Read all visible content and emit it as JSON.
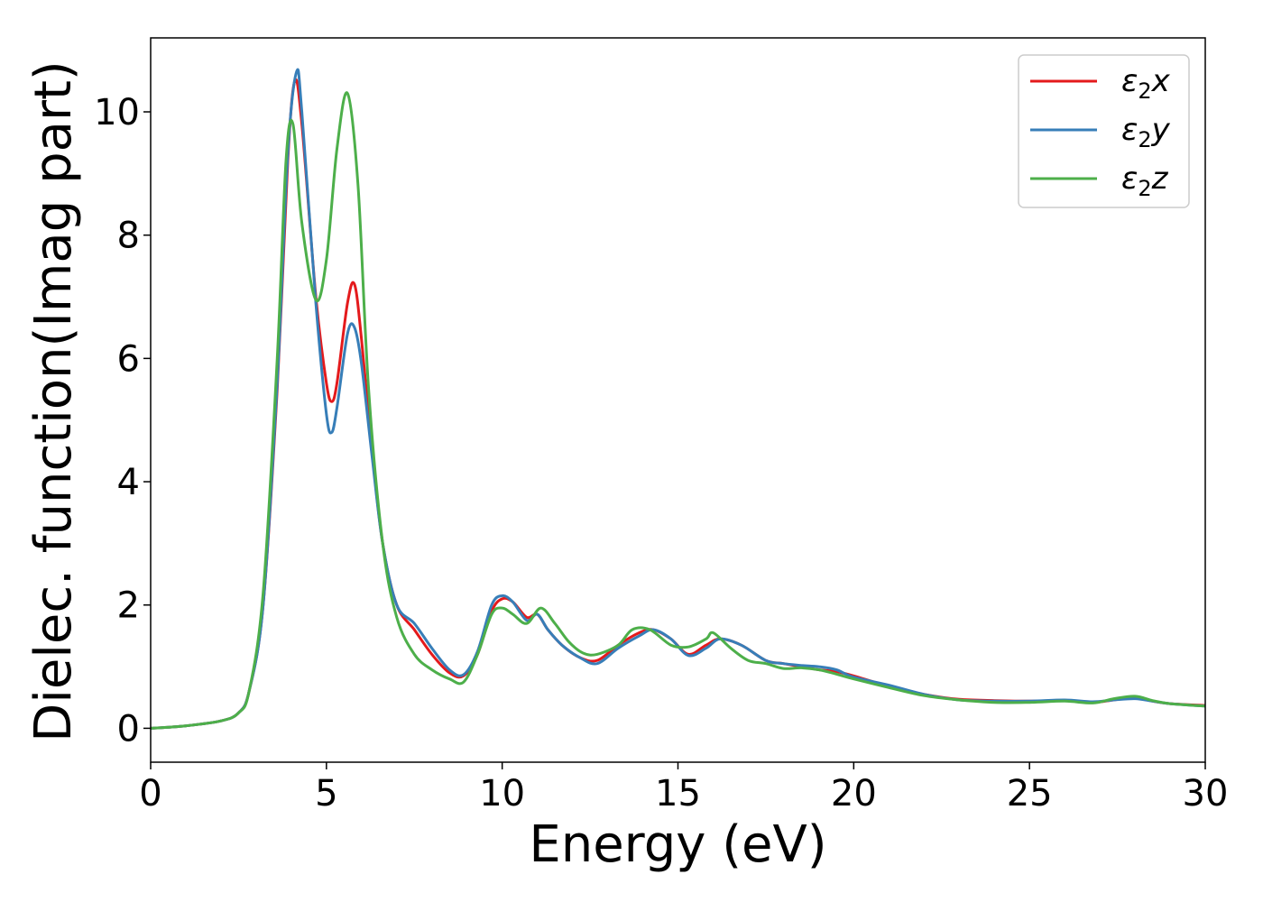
{
  "chart_data": {
    "type": "line",
    "title": "",
    "xlabel": "Energy (eV)",
    "ylabel": "Dielec. function(Imag part)",
    "xlim": [
      0,
      30
    ],
    "ylim": [
      -0.55,
      11.2
    ],
    "grid": false,
    "legend": "top-right",
    "xticks": [
      0,
      5,
      10,
      15,
      20,
      25,
      30
    ],
    "xtick_labels": [
      "0",
      "5",
      "10",
      "15",
      "20",
      "25",
      "30"
    ],
    "yticks": [
      0,
      2,
      4,
      6,
      8,
      10
    ],
    "ytick_labels": [
      "0",
      "2",
      "4",
      "6",
      "8",
      "10"
    ],
    "series": [
      {
        "name": "ε2x",
        "legend_base": "ε",
        "legend_sub": "2",
        "legend_suffix": "x",
        "color": "#e41a1c",
        "x": [
          0,
          1,
          2,
          2.5,
          2.8,
          3.2,
          3.6,
          3.9,
          4.1,
          4.3,
          4.7,
          5.0,
          5.15,
          5.3,
          5.6,
          5.8,
          6.0,
          6.3,
          6.6,
          7.0,
          7.5,
          8.0,
          8.5,
          8.9,
          9.3,
          9.7,
          10.0,
          10.3,
          10.7,
          11.0,
          11.3,
          11.7,
          12.2,
          12.7,
          13.3,
          13.9,
          14.3,
          14.8,
          15.3,
          15.8,
          16.2,
          16.8,
          17.5,
          18.0,
          18.5,
          19.0,
          19.5,
          20.0,
          21.0,
          22.0,
          23.0,
          24.0,
          25.0,
          26.0,
          26.8,
          27.4,
          28.0,
          28.5,
          29.0,
          30.0
        ],
        "y": [
          0,
          0.04,
          0.12,
          0.25,
          0.6,
          2.0,
          5.5,
          9.2,
          10.5,
          9.8,
          7.0,
          5.6,
          5.3,
          5.6,
          6.9,
          7.2,
          6.3,
          4.5,
          3.0,
          2.0,
          1.6,
          1.2,
          0.9,
          0.85,
          1.2,
          1.9,
          2.1,
          2.05,
          1.8,
          1.85,
          1.6,
          1.35,
          1.15,
          1.1,
          1.35,
          1.55,
          1.6,
          1.45,
          1.2,
          1.35,
          1.45,
          1.35,
          1.1,
          1.05,
          1.0,
          0.95,
          0.92,
          0.85,
          0.68,
          0.55,
          0.47,
          0.45,
          0.44,
          0.45,
          0.42,
          0.46,
          0.5,
          0.44,
          0.4,
          0.37
        ]
      },
      {
        "name": "ε2y",
        "legend_base": "ε",
        "legend_sub": "2",
        "legend_suffix": "y",
        "color": "#377eb8",
        "x": [
          0,
          1,
          2,
          2.5,
          2.8,
          3.2,
          3.6,
          3.9,
          4.15,
          4.3,
          4.7,
          5.0,
          5.15,
          5.3,
          5.6,
          5.8,
          6.0,
          6.3,
          6.6,
          7.0,
          7.5,
          8.0,
          8.5,
          8.9,
          9.3,
          9.7,
          10.0,
          10.3,
          10.7,
          11.0,
          11.3,
          11.7,
          12.2,
          12.7,
          13.3,
          13.9,
          14.3,
          14.8,
          15.3,
          15.8,
          16.2,
          16.8,
          17.5,
          18.0,
          18.5,
          19.0,
          19.5,
          20.0,
          21.0,
          22.0,
          23.0,
          24.0,
          25.0,
          26.0,
          26.8,
          27.4,
          28.0,
          28.5,
          29.0,
          30.0
        ],
        "y": [
          0,
          0.04,
          0.12,
          0.25,
          0.6,
          2.0,
          5.6,
          9.3,
          10.65,
          10.0,
          6.9,
          5.1,
          4.8,
          5.2,
          6.4,
          6.5,
          5.9,
          4.4,
          3.0,
          2.0,
          1.7,
          1.3,
          0.95,
          0.87,
          1.25,
          2.0,
          2.15,
          2.05,
          1.75,
          1.85,
          1.6,
          1.35,
          1.15,
          1.05,
          1.3,
          1.5,
          1.6,
          1.45,
          1.18,
          1.3,
          1.45,
          1.35,
          1.1,
          1.05,
          1.02,
          1.0,
          0.95,
          0.83,
          0.7,
          0.55,
          0.46,
          0.44,
          0.44,
          0.46,
          0.43,
          0.46,
          0.48,
          0.44,
          0.4,
          0.36
        ]
      },
      {
        "name": "ε2z",
        "legend_base": "ε",
        "legend_sub": "2",
        "legend_suffix": "z",
        "color": "#4daf4a",
        "x": [
          0,
          1,
          2,
          2.5,
          2.8,
          3.2,
          3.6,
          3.85,
          4.05,
          4.3,
          4.7,
          5.0,
          5.3,
          5.6,
          5.9,
          6.2,
          6.6,
          7.0,
          7.5,
          8.0,
          8.5,
          8.9,
          9.3,
          9.7,
          10.0,
          10.3,
          10.7,
          11.1,
          11.5,
          11.9,
          12.3,
          12.7,
          13.3,
          13.7,
          14.2,
          14.8,
          15.3,
          15.8,
          16.0,
          16.5,
          17.0,
          17.5,
          18.0,
          18.5,
          19.0,
          19.5,
          20.0,
          21.0,
          22.0,
          23.0,
          24.0,
          25.0,
          26.0,
          26.8,
          27.4,
          28.0,
          28.5,
          29.0,
          30.0
        ],
        "y": [
          0,
          0.04,
          0.12,
          0.25,
          0.6,
          2.2,
          6.0,
          9.2,
          9.8,
          8.2,
          6.95,
          7.6,
          9.4,
          10.3,
          8.8,
          5.5,
          3.0,
          1.8,
          1.2,
          0.95,
          0.8,
          0.75,
          1.2,
          1.85,
          1.95,
          1.85,
          1.7,
          1.95,
          1.7,
          1.4,
          1.22,
          1.2,
          1.35,
          1.6,
          1.6,
          1.35,
          1.32,
          1.45,
          1.55,
          1.3,
          1.1,
          1.05,
          0.97,
          0.98,
          0.95,
          0.88,
          0.8,
          0.66,
          0.53,
          0.46,
          0.42,
          0.42,
          0.44,
          0.41,
          0.48,
          0.52,
          0.45,
          0.4,
          0.36
        ]
      }
    ]
  }
}
